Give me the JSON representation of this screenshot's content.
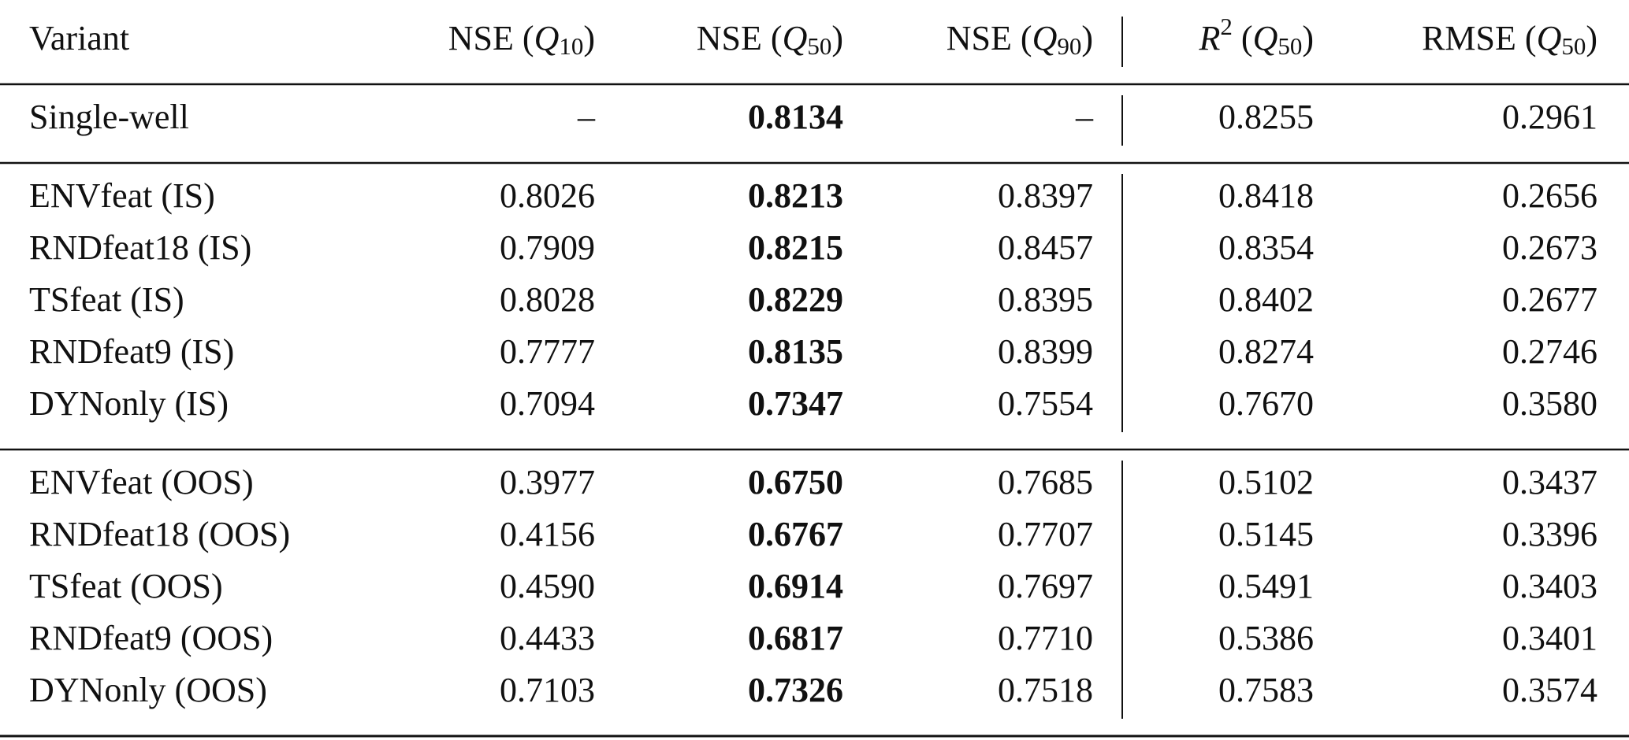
{
  "table": {
    "header": [
      [
        {
          "t": "Variant"
        }
      ],
      [
        {
          "t": "NSE ("
        },
        {
          "t": "Q",
          "italic": true
        },
        {
          "t": "10",
          "sub": true
        },
        {
          "t": ")"
        }
      ],
      [
        {
          "t": "NSE ("
        },
        {
          "t": "Q",
          "italic": true
        },
        {
          "t": "50",
          "sub": true
        },
        {
          "t": ")"
        }
      ],
      [
        {
          "t": "NSE ("
        },
        {
          "t": "Q",
          "italic": true
        },
        {
          "t": "90",
          "sub": true
        },
        {
          "t": ")"
        }
      ],
      [
        {
          "t": "R",
          "italic": true
        },
        {
          "t": "2",
          "sup": true
        },
        {
          "t": " ("
        },
        {
          "t": "Q",
          "italic": true
        },
        {
          "t": "50",
          "sub": true
        },
        {
          "t": ")"
        }
      ],
      [
        {
          "t": "RMSE ("
        },
        {
          "t": "Q",
          "italic": true
        },
        {
          "t": "50",
          "sub": true
        },
        {
          "t": ")"
        }
      ]
    ],
    "bold_column": 2,
    "divider_after_column": 3,
    "groups": [
      [
        [
          "Single-well",
          "–",
          "0.8134",
          "–",
          "0.8255",
          "0.2961"
        ]
      ],
      [
        [
          "ENVfeat (IS)",
          "0.8026",
          "0.8213",
          "0.8397",
          "0.8418",
          "0.2656"
        ],
        [
          "RNDfeat18 (IS)",
          "0.7909",
          "0.8215",
          "0.8457",
          "0.8354",
          "0.2673"
        ],
        [
          "TSfeat (IS)",
          "0.8028",
          "0.8229",
          "0.8395",
          "0.8402",
          "0.2677"
        ],
        [
          "RNDfeat9 (IS)",
          "0.7777",
          "0.8135",
          "0.8399",
          "0.8274",
          "0.2746"
        ],
        [
          "DYNonly (IS)",
          "0.7094",
          "0.7347",
          "0.7554",
          "0.7670",
          "0.3580"
        ]
      ],
      [
        [
          "ENVfeat (OOS)",
          "0.3977",
          "0.6750",
          "0.7685",
          "0.5102",
          "0.3437"
        ],
        [
          "RNDfeat18 (OOS)",
          "0.4156",
          "0.6767",
          "0.7707",
          "0.5145",
          "0.3396"
        ],
        [
          "TSfeat (OOS)",
          "0.4590",
          "0.6914",
          "0.7697",
          "0.5491",
          "0.3403"
        ],
        [
          "RNDfeat9 (OOS)",
          "0.4433",
          "0.6817",
          "0.7710",
          "0.5386",
          "0.3401"
        ],
        [
          "DYNonly (OOS)",
          "0.7103",
          "0.7326",
          "0.7518",
          "0.7583",
          "0.3574"
        ]
      ]
    ]
  }
}
